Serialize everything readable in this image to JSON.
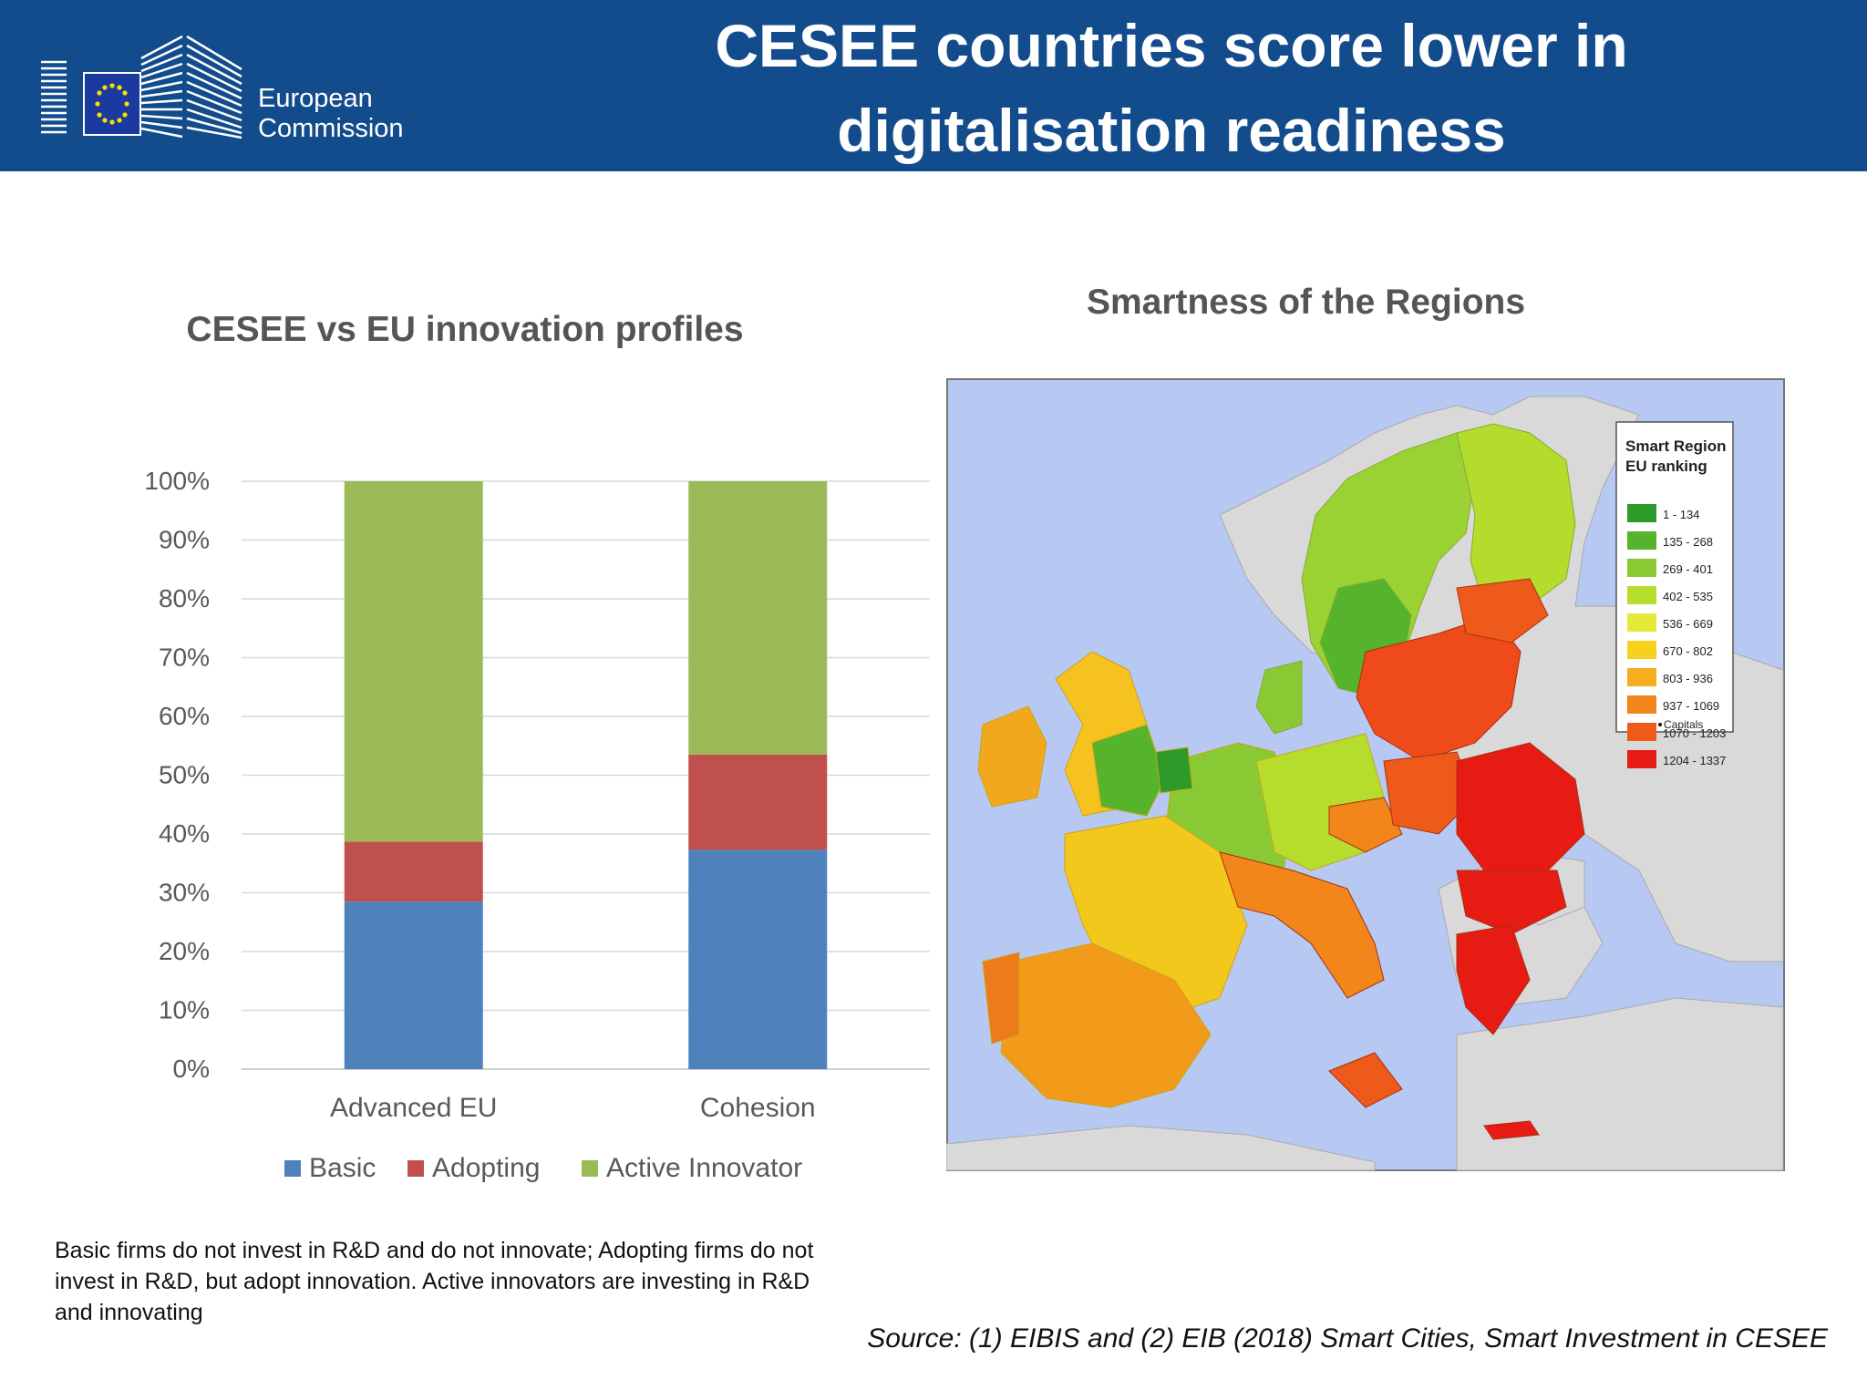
{
  "header": {
    "title_line1": "CESEE countries score lower in",
    "title_line2": "digitalisation readiness",
    "logo_line1": "European",
    "logo_line2": "Commission",
    "background": "#134c8c"
  },
  "chart_title": "CESEE vs EU innovation profiles",
  "map": {
    "title": "Smartness of the Regions",
    "legend_title_line1": "Smart Region",
    "legend_title_line2": "EU ranking",
    "legend": [
      {
        "label": "1 - 134",
        "color": "#2e9a2a"
      },
      {
        "label": "135 - 268",
        "color": "#55b42c"
      },
      {
        "label": "269 - 401",
        "color": "#88c934"
      },
      {
        "label": "402 - 535",
        "color": "#b6dc2c"
      },
      {
        "label": "536 - 669",
        "color": "#e4ea3a"
      },
      {
        "label": "670 - 802",
        "color": "#f6d21f"
      },
      {
        "label": "803 - 936",
        "color": "#f6ad1f"
      },
      {
        "label": "937 - 1069",
        "color": "#f2861a"
      },
      {
        "label": "1070 - 1203",
        "color": "#ee5a1a"
      },
      {
        "label": "1204 - 1337",
        "color": "#e51b14"
      }
    ],
    "capitals_label": "Capitals",
    "sea_color": "#b7c8f2",
    "land_nodata_color": "#d9d9d9"
  },
  "chart_data": {
    "type": "bar",
    "stacked": true,
    "categories": [
      "Advanced EU",
      "Cohesion"
    ],
    "series": [
      {
        "name": "Basic",
        "color": "#4f81bd",
        "values": [
          28.5,
          37.3
        ]
      },
      {
        "name": "Adopting",
        "color": "#c0504d",
        "values": [
          10.2,
          16.2
        ]
      },
      {
        "name": "Active Innovator",
        "color": "#9bbb59",
        "values": [
          61.3,
          46.5
        ]
      }
    ],
    "ylim": [
      0,
      100
    ],
    "yticks": [
      "0%",
      "10%",
      "20%",
      "30%",
      "40%",
      "50%",
      "60%",
      "70%",
      "80%",
      "90%",
      "100%"
    ],
    "grid": true,
    "legend_position": "bottom"
  },
  "footnote": "Basic firms do not invest in R&D and do not innovate; Adopting firms do not invest in R&D, but adopt innovation. Active innovators are investing in R&D and innovating",
  "source": "Source: (1) EIBIS and (2) EIB (2018) Smart Cities, Smart Investment in CESEE"
}
